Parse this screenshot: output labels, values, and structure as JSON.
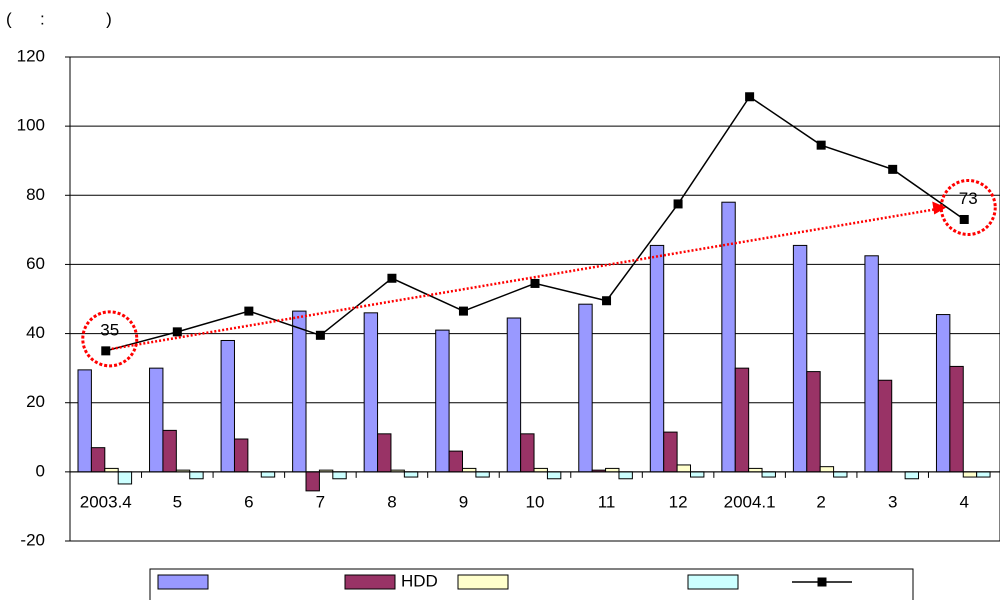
{
  "chart_data": {
    "type": "bar",
    "unit_note": "(      :             )",
    "categories": [
      "2003.4",
      "5",
      "6",
      "7",
      "8",
      "9",
      "10",
      "11",
      "12",
      "2004.1",
      "2",
      "3",
      "4"
    ],
    "series": [
      {
        "type": "bar",
        "color": "#9999ff",
        "values": [
          29.5,
          30,
          38,
          46.5,
          46,
          41,
          44.5,
          48.5,
          65.5,
          78,
          65.5,
          62.5,
          45.5
        ]
      },
      {
        "type": "bar",
        "name": "HDD",
        "color": "#993366",
        "values": [
          7,
          12,
          9.5,
          -5.5,
          11,
          6,
          11,
          0.5,
          11.5,
          30,
          29,
          26.5,
          30.5
        ]
      },
      {
        "type": "bar",
        "color": "#ffffcc",
        "values": [
          1,
          0.5,
          0,
          0.5,
          0.5,
          1,
          1,
          1,
          2,
          1,
          1.5,
          0,
          -1.5
        ]
      },
      {
        "type": "bar",
        "color": "#ccffff",
        "values": [
          -3.5,
          -2,
          -1.5,
          -2,
          -1.5,
          -1.5,
          -2,
          -2,
          -1.5,
          -1.5,
          -1.5,
          -2,
          -1.5
        ]
      },
      {
        "type": "line",
        "color": "#000000",
        "values": [
          35,
          40.5,
          46.5,
          39.5,
          56,
          46.5,
          54.5,
          49.5,
          77.5,
          108.5,
          94.5,
          87.5,
          73
        ],
        "value_labels": [
          "35",
          null,
          null,
          null,
          null,
          null,
          null,
          null,
          null,
          null,
          null,
          null,
          "73"
        ]
      }
    ],
    "ylim": [
      -20,
      120
    ],
    "yticks": [
      -20,
      0,
      20,
      40,
      60,
      80,
      100,
      120
    ],
    "grid": true,
    "trend_color": "#ff0000",
    "legend": "bottom"
  }
}
